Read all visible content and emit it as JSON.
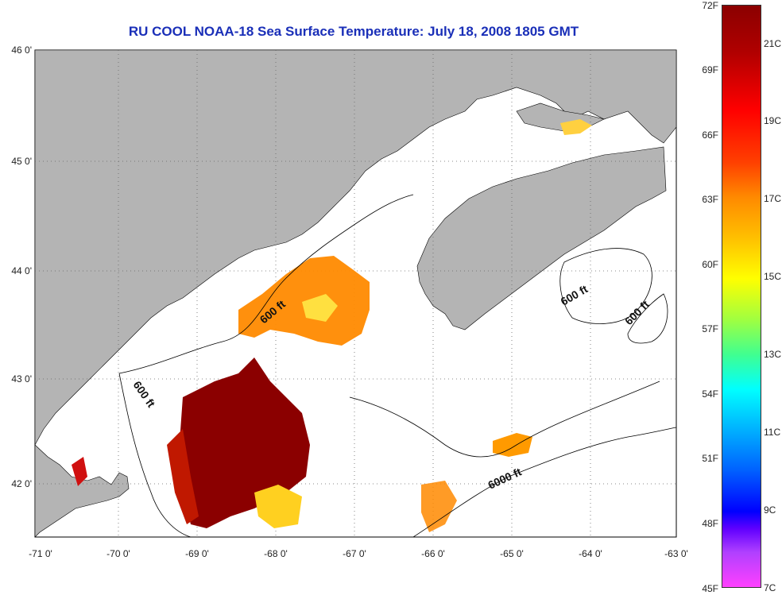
{
  "title": "RU COOL  NOAA-18  Sea Surface Temperature:  July 18, 2008 1805 GMT",
  "lat_labels": [
    "46 0'",
    "45 0'",
    "44 0'",
    "43 0'",
    "42 0'"
  ],
  "lon_labels": [
    "-71 0'",
    "-70 0'",
    "-69 0'",
    "-68 0'",
    "-67 0'",
    "-66 0'",
    "-65 0'",
    "-64 0'",
    "-63 0'"
  ],
  "contour_labels": [
    "600 ft",
    "600 ft",
    "600 ft",
    "600 ft",
    "6000 ft"
  ],
  "colorbar": {
    "fahrenheit": [
      "72F",
      "69F",
      "66F",
      "63F",
      "60F",
      "57F",
      "54F",
      "51F",
      "48F",
      "45F"
    ],
    "celsius": [
      "21C",
      "19C",
      "17C",
      "15C",
      "13C",
      "11C",
      "9C",
      "7C"
    ]
  },
  "colors": {
    "land": "#b4b4b4",
    "water": "#ffffff",
    "title": "#1a2fb8",
    "warmest": "#8b0000",
    "coldest": "#ff40ff"
  }
}
